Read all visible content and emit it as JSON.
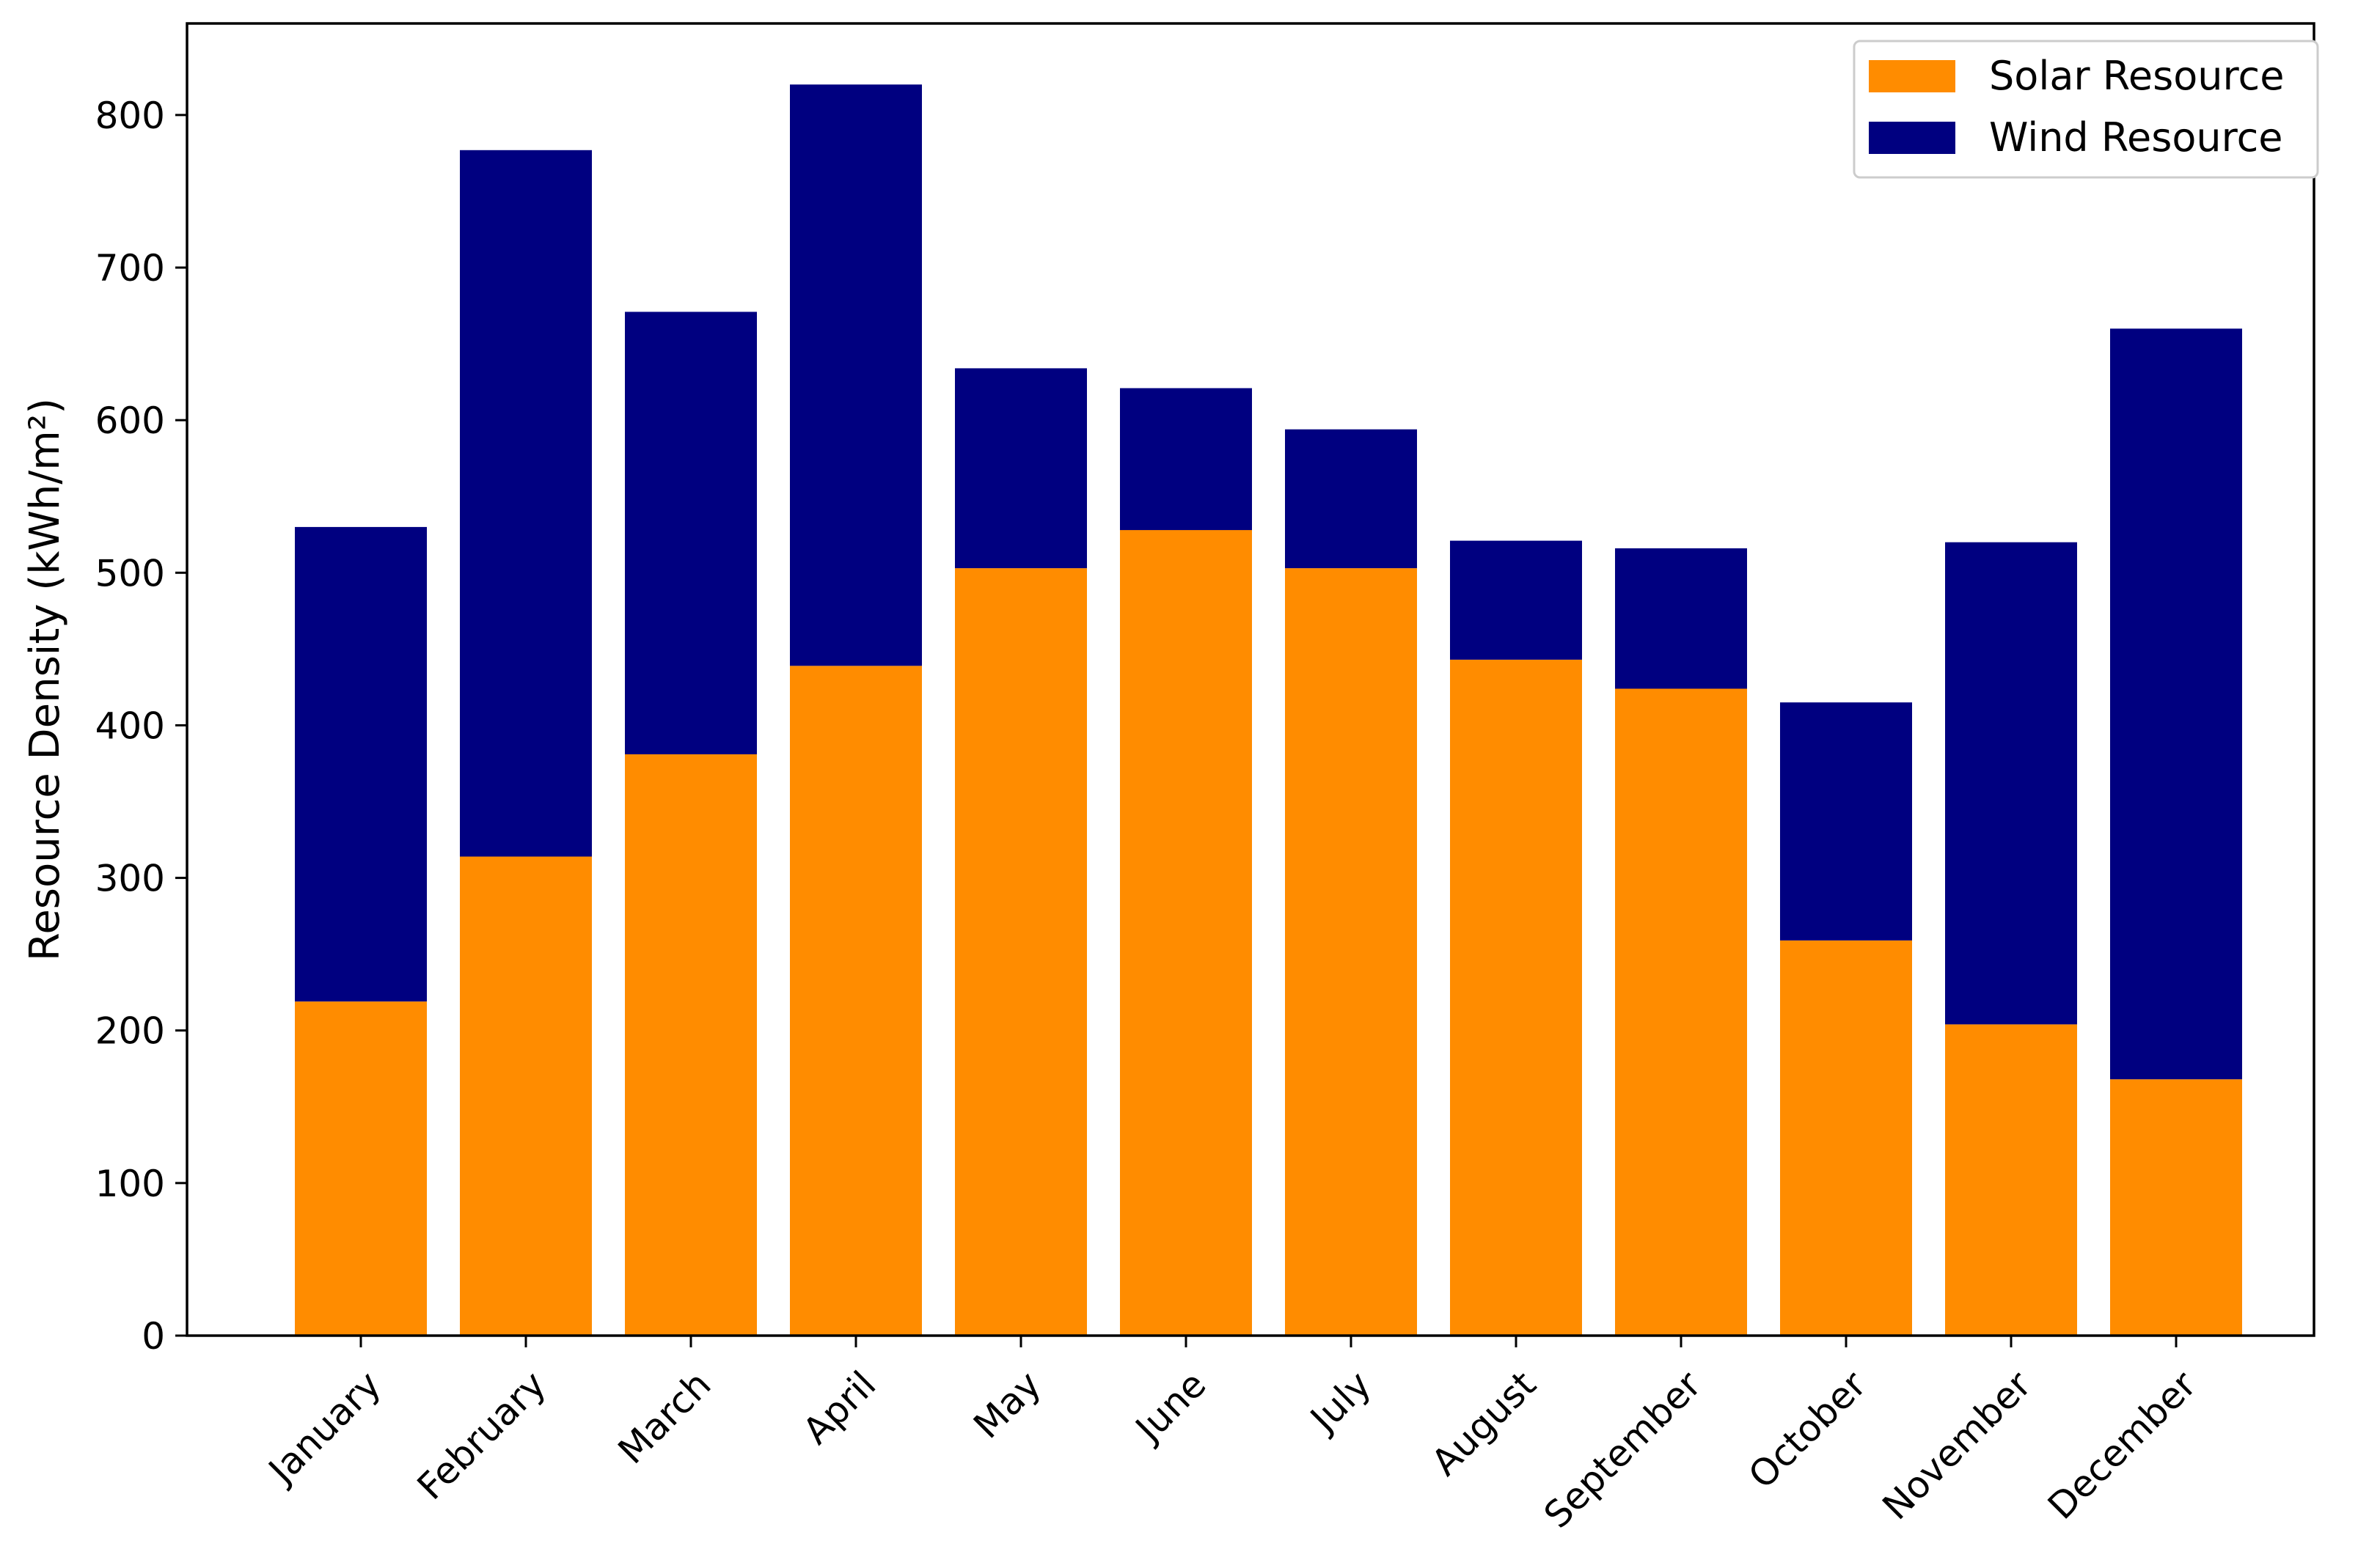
{
  "chart_data": {
    "type": "bar",
    "stacked": true,
    "title": "",
    "xlabel": "",
    "ylabel": "Resource Density (kWh/m²)",
    "ylim": [
      0,
      860
    ],
    "yticks": [
      0,
      100,
      200,
      300,
      400,
      500,
      600,
      700,
      800
    ],
    "categories": [
      "January",
      "February",
      "March",
      "April",
      "May",
      "June",
      "July",
      "August",
      "September",
      "October",
      "November",
      "December"
    ],
    "series": [
      {
        "name": "Solar Resource",
        "color": "#ff8c00",
        "values": [
          219,
          314,
          381,
          439,
          503,
          528,
          503,
          443,
          424,
          259,
          204,
          168
        ]
      },
      {
        "name": "Wind Resource",
        "color": "#000080",
        "values": [
          311,
          463,
          290,
          381,
          131,
          93,
          91,
          78,
          92,
          156,
          316,
          492
        ]
      }
    ],
    "legend_position": "top-right",
    "grid": false
  }
}
